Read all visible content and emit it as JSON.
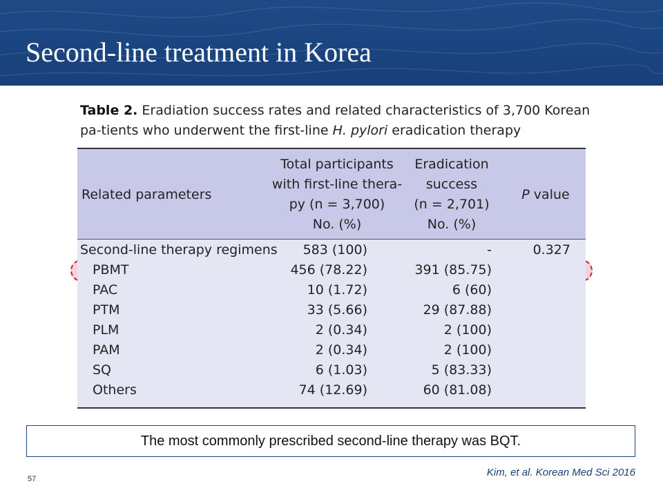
{
  "slide": {
    "title": "Second-line treatment in Korea",
    "page_number": "57",
    "citation": "Kim, et al.  Korean Med Sci 2016",
    "callout": "The most commonly prescribed second-line therapy was BQT."
  },
  "caption": {
    "label": "Table 2.",
    "text_before_italic": " Eradiation success rates and related characteristics of 3,700 Korean pa-tients who underwent the first-line ",
    "italic": "H. pylori",
    "text_after_italic": " eradication therapy"
  },
  "table": {
    "headers": {
      "param": "Related parameters",
      "total": [
        "Total participants",
        "with first-line thera-",
        "py (n = 3,700)",
        "No. (%)"
      ],
      "success": [
        "Eradication",
        "success",
        "(n = 2,701)",
        "No. (%)"
      ],
      "p_italic": "P",
      "p_rest": " value"
    },
    "rows": [
      {
        "name": "Second-line therapy regimens",
        "total": "583 (100)",
        "success": "-",
        "p": "0.327"
      },
      {
        "name": "PBMT",
        "total": "456 (78.22)",
        "success": "391 (85.75)",
        "p": ""
      },
      {
        "name": "PAC",
        "total": "10 (1.72)",
        "success": "6 (60)",
        "p": ""
      },
      {
        "name": "PTM",
        "total": "33 (5.66)",
        "success": "29 (87.88)",
        "p": ""
      },
      {
        "name": "PLM",
        "total": "2 (0.34)",
        "success": "2 (100)",
        "p": ""
      },
      {
        "name": "PAM",
        "total": "2 (0.34)",
        "success": "2 (100)",
        "p": ""
      },
      {
        "name": "SQ",
        "total": "6 (1.03)",
        "success": "5 (83.33)",
        "p": ""
      },
      {
        "name": "Others",
        "total": "74 (12.69)",
        "success": "60 (81.08)",
        "p": ""
      }
    ],
    "highlighted_row": "PBMT"
  },
  "colors": {
    "header_bg": "#1b4580",
    "table_header_bg": "#c8c9e9",
    "table_body_bg": "#e5e6f4",
    "highlight_border": "#c0262d"
  }
}
